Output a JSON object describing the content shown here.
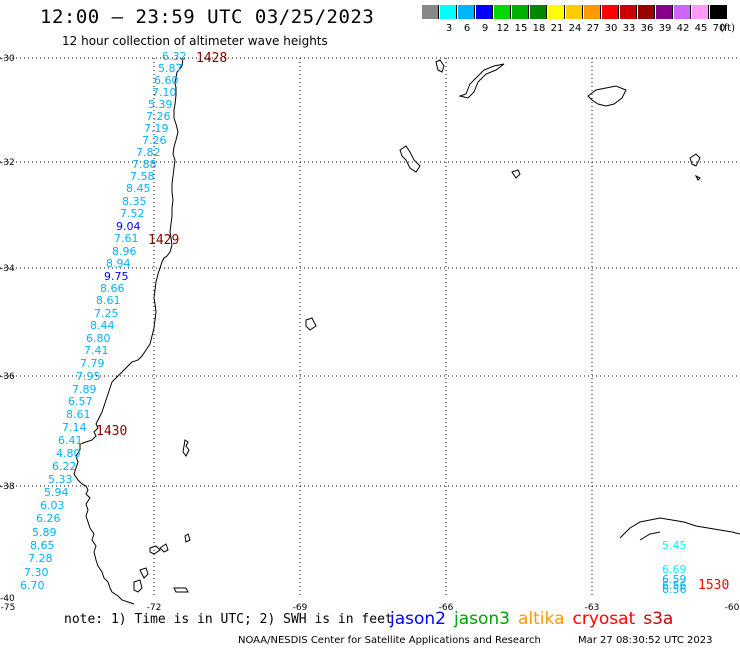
{
  "header": {
    "title": "12:00 – 23:59 UTC 03/25/2023",
    "subtitle": "12 hour collection of altimeter wave heights"
  },
  "color_scale": {
    "bins": [
      {
        "label": "",
        "color": "#888888"
      },
      {
        "label": "3",
        "color": "#00ffff"
      },
      {
        "label": "6",
        "color": "#00b4ff"
      },
      {
        "label": "9",
        "color": "#0000ff"
      },
      {
        "label": "12",
        "color": "#00d800"
      },
      {
        "label": "15",
        "color": "#00b000"
      },
      {
        "label": "18",
        "color": "#008800"
      },
      {
        "label": "21",
        "color": "#ffff00"
      },
      {
        "label": "24",
        "color": "#ffcc00"
      },
      {
        "label": "27",
        "color": "#ff9900"
      },
      {
        "label": "30",
        "color": "#ff0000"
      },
      {
        "label": "33",
        "color": "#cc0000"
      },
      {
        "label": "36",
        "color": "#990000"
      },
      {
        "label": "39",
        "color": "#880088"
      },
      {
        "label": "42",
        "color": "#cc66ff"
      },
      {
        "label": "45",
        "color": "#ff99ff"
      },
      {
        "label": "70",
        "color": "#000000"
      }
    ],
    "unit": "(ft)"
  },
  "axes": {
    "lat_labels": [
      "-30",
      "-32",
      "-34",
      "-36",
      "-38",
      "-40"
    ],
    "lon_labels": [
      "-75",
      "-72",
      "-69",
      "-66",
      "-63",
      "-60"
    ]
  },
  "time_labels": [
    {
      "text": "1428",
      "color": "#8b0000"
    },
    {
      "text": "1429",
      "color": "#8b0000"
    },
    {
      "text": "1430",
      "color": "#8b0000"
    },
    {
      "text": "1530",
      "color": "#ff0000"
    }
  ],
  "wave_heights": [
    {
      "text": "6.32",
      "color": "#00b4ff"
    },
    {
      "text": "5.87",
      "color": "#00b4ff"
    },
    {
      "text": "6.60",
      "color": "#00b4ff"
    },
    {
      "text": "7.10",
      "color": "#00b4ff"
    },
    {
      "text": "5.39",
      "color": "#00b4ff"
    },
    {
      "text": "7.26",
      "color": "#00b4ff"
    },
    {
      "text": "7.19",
      "color": "#00b4ff"
    },
    {
      "text": "7.26",
      "color": "#00b4ff"
    },
    {
      "text": "7.82",
      "color": "#00b4ff"
    },
    {
      "text": "7.88",
      "color": "#00b4ff"
    },
    {
      "text": "7.58",
      "color": "#00b4ff"
    },
    {
      "text": "8.45",
      "color": "#00b4ff"
    },
    {
      "text": "8.35",
      "color": "#00b4ff"
    },
    {
      "text": "7.52",
      "color": "#00b4ff"
    },
    {
      "text": "9.04",
      "color": "#0000ff"
    },
    {
      "text": "7.61",
      "color": "#00b4ff"
    },
    {
      "text": "8.96",
      "color": "#00b4ff"
    },
    {
      "text": "8.94",
      "color": "#00b4ff"
    },
    {
      "text": "9.75",
      "color": "#0000ff"
    },
    {
      "text": "8.66",
      "color": "#00b4ff"
    },
    {
      "text": "8.61",
      "color": "#00b4ff"
    },
    {
      "text": "7.25",
      "color": "#00b4ff"
    },
    {
      "text": "8.44",
      "color": "#00b4ff"
    },
    {
      "text": "6.80",
      "color": "#00b4ff"
    },
    {
      "text": "7.41",
      "color": "#00b4ff"
    },
    {
      "text": "7.79",
      "color": "#00b4ff"
    },
    {
      "text": "7.95",
      "color": "#00b4ff"
    },
    {
      "text": "7.89",
      "color": "#00b4ff"
    },
    {
      "text": "6.57",
      "color": "#00b4ff"
    },
    {
      "text": "8.61",
      "color": "#00b4ff"
    },
    {
      "text": "7.14",
      "color": "#00b4ff"
    },
    {
      "text": "6.41",
      "color": "#00b4ff"
    },
    {
      "text": "4.80",
      "color": "#00b4ff"
    },
    {
      "text": "6.22",
      "color": "#00b4ff"
    },
    {
      "text": "5.33",
      "color": "#00b4ff"
    },
    {
      "text": "5.94",
      "color": "#00b4ff"
    },
    {
      "text": "6.03",
      "color": "#00b4ff"
    },
    {
      "text": "6.26",
      "color": "#00b4ff"
    },
    {
      "text": "5.89",
      "color": "#00b4ff"
    },
    {
      "text": "8.65",
      "color": "#00b4ff"
    },
    {
      "text": "7.28",
      "color": "#00b4ff"
    },
    {
      "text": "7.30",
      "color": "#00b4ff"
    },
    {
      "text": "6.70",
      "color": "#00b4ff"
    },
    {
      "text": "5.45",
      "color": "#00ffff"
    },
    {
      "text": "6.69",
      "color": "#00ffff"
    },
    {
      "text": "6.59",
      "color": "#00b4ff"
    },
    {
      "text": "6.56",
      "color": "#00b4ff"
    },
    {
      "text": "6.56",
      "color": "#00b4ff"
    }
  ],
  "footer": {
    "note": "note: 1) Time is in UTC; 2) SWH is in feet",
    "credit": "NOAA/NESDIS Center for Satellite Applications and Research",
    "timestamp": "Mar 27 08:30:52 UTC 2023"
  },
  "legend": [
    {
      "label": "jason2",
      "color": "#0000ff"
    },
    {
      "label": "jason3",
      "color": "#00a000"
    },
    {
      "label": "altika",
      "color": "#ff9900"
    },
    {
      "label": "cryosat",
      "color": "#ff0000"
    },
    {
      "label": "s3a",
      "color": "#cc0000"
    }
  ]
}
